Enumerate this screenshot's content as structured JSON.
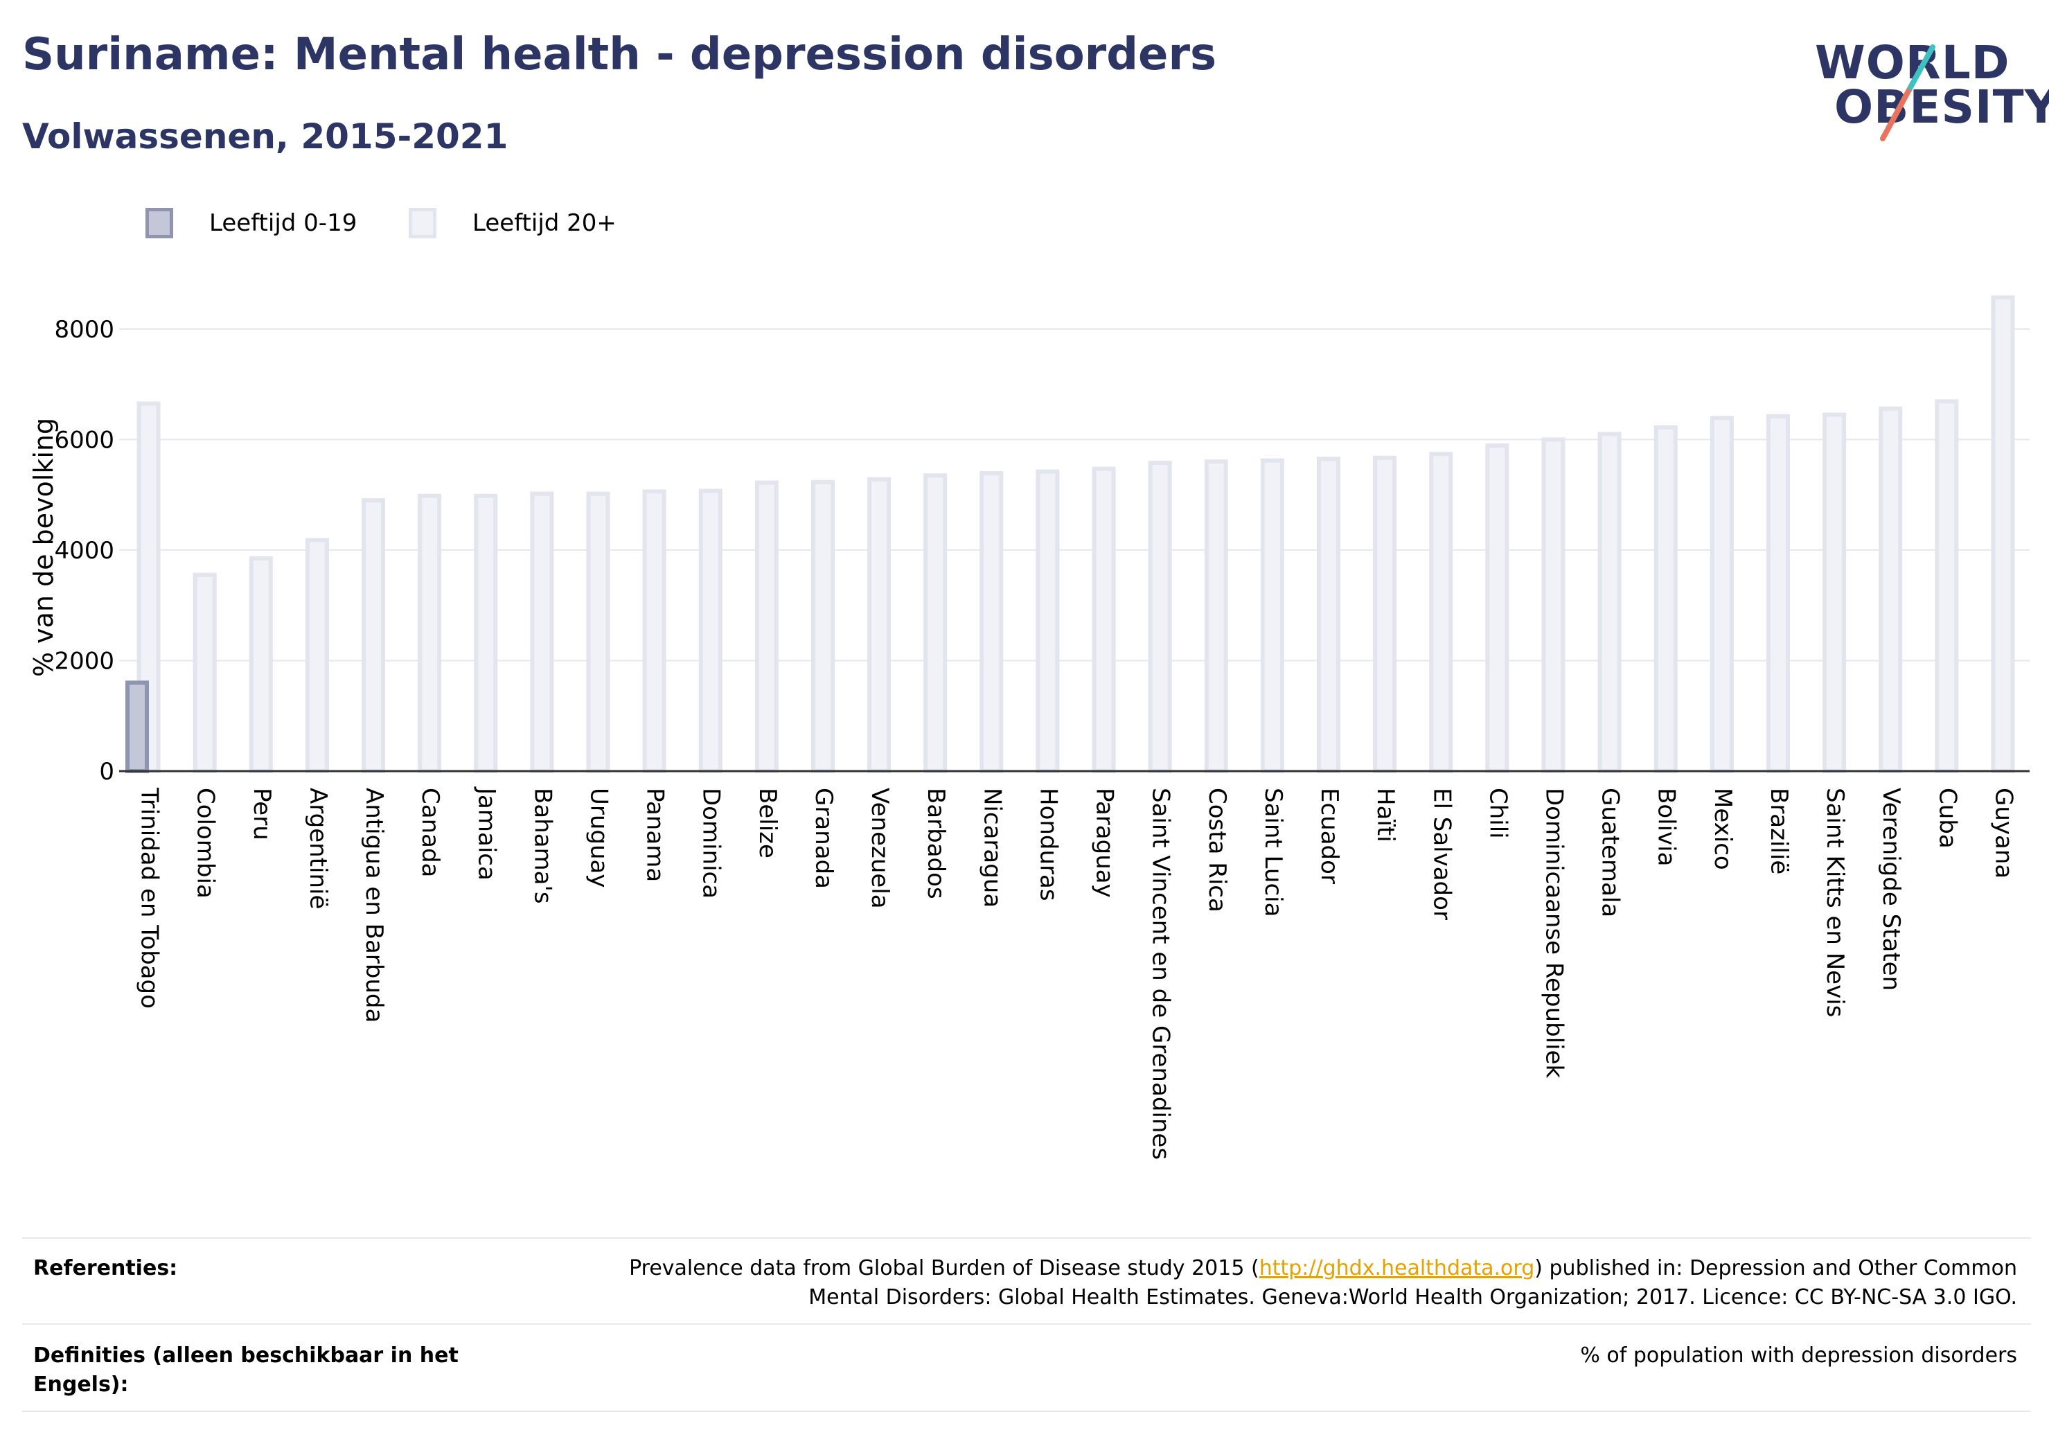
{
  "header": {
    "title": "Suriname: Mental health - depression disorders",
    "subtitle": "Volwassenen, 2015-2021"
  },
  "logo": {
    "line1": "WORLD",
    "line2": "OBESITY"
  },
  "legend": {
    "items": [
      {
        "label": "Leeftijd 0-19",
        "color": "#9ea3bd"
      },
      {
        "label": "Leeftijd 20+",
        "color": "#eceef4"
      }
    ]
  },
  "chart_data": {
    "type": "bar",
    "ylabel": "% van de bevolking",
    "xlabel": "",
    "ylim": [
      0,
      8600
    ],
    "yticks": [
      0,
      2000,
      4000,
      6000,
      8000
    ],
    "grid": true,
    "legend_position": "top-left",
    "categories": [
      "Trinidad en Tobago",
      "Colombia",
      "Peru",
      "Argentinië",
      "Antigua en Barbuda",
      "Canada",
      "Jamaica",
      "Bahama's",
      "Uruguay",
      "Panama",
      "Dominica",
      "Belize",
      "Granada",
      "Venezuela",
      "Barbados",
      "Nicaragua",
      "Honduras",
      "Paraguay",
      "Saint Vincent en de Grenadines",
      "Costa Rica",
      "Saint Lucia",
      "Ecuador",
      "Haïti",
      "El Salvador",
      "Chili",
      "Dominicaanse Republiek",
      "Guatemala",
      "Bolivia",
      "Mexico",
      "Brazilië",
      "Saint Kitts en Nevis",
      "Verenigde Staten",
      "Cuba",
      "Guyana"
    ],
    "series": [
      {
        "name": "Leeftijd 0-19",
        "color": "#9ea3bd",
        "values": [
          1600,
          null,
          null,
          null,
          null,
          null,
          null,
          null,
          null,
          null,
          null,
          null,
          null,
          null,
          null,
          null,
          null,
          null,
          null,
          null,
          null,
          null,
          null,
          null,
          null,
          null,
          null,
          null,
          null,
          null,
          null,
          null,
          null,
          null
        ]
      },
      {
        "name": "Leeftijd 20+",
        "color": "#eceef4",
        "values": [
          6650,
          3550,
          3850,
          4180,
          4900,
          4980,
          4980,
          5020,
          5020,
          5060,
          5070,
          5220,
          5230,
          5280,
          5350,
          5390,
          5420,
          5470,
          5580,
          5600,
          5620,
          5650,
          5670,
          5740,
          5890,
          6000,
          6100,
          6220,
          6390,
          6420,
          6450,
          6560,
          6690,
          8570
        ]
      }
    ]
  },
  "references": {
    "label": "Referenties:",
    "text_before": "Prevalence data from Global Burden of Disease study 2015 (",
    "link": "http://ghdx.healthdata.org",
    "text_after": ") published in: Depression and Other Common",
    "text_line2": "Mental Disorders: Global Health Estimates. Geneva:World Health Organization; 2017. Licence: CC BY-NC-SA 3.0 IGO."
  },
  "definitions": {
    "label_line1": "Definities (alleen beschikbaar in het",
    "label_line2": "Engels):",
    "text": "% of population with depression disorders"
  }
}
